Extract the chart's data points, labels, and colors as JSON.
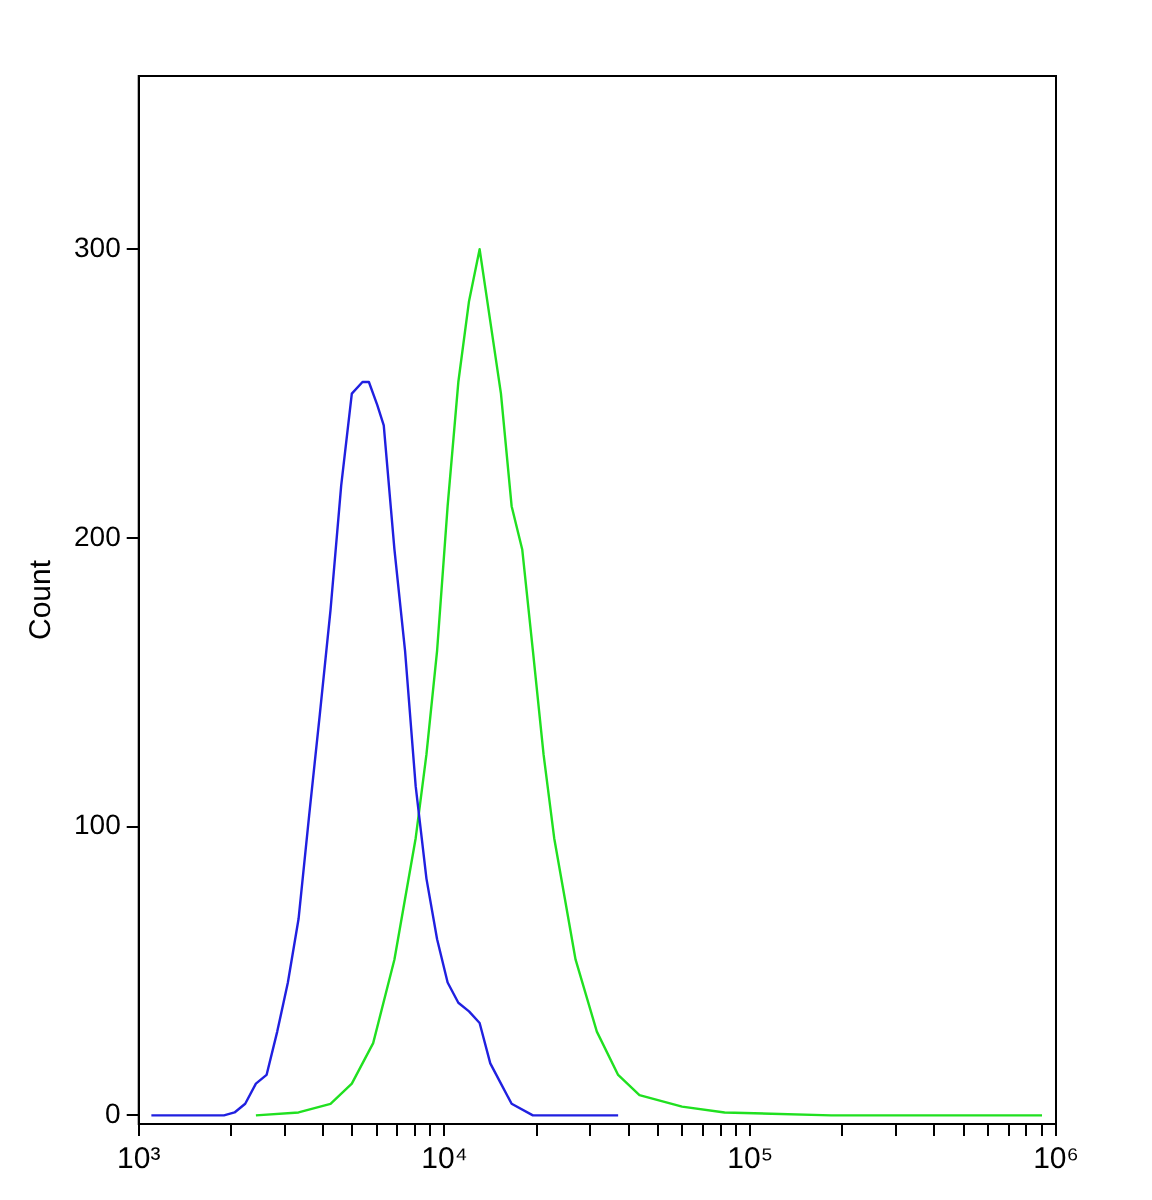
{
  "chart_data": {
    "type": "line",
    "ylabel": "Count",
    "log": "x",
    "grid": false,
    "legend": false,
    "marker": "none",
    "line_style": "solid",
    "xlim": [
      1000,
      1000000
    ],
    "xticks": [
      {
        "value": 1000,
        "label": "10³"
      },
      {
        "value": 2000,
        "label": null
      },
      {
        "value": 3000,
        "label": null
      },
      {
        "value": 4000,
        "label": null
      },
      {
        "value": 5000,
        "label": null
      },
      {
        "value": 6000,
        "label": null
      },
      {
        "value": 7000,
        "label": null
      },
      {
        "value": 8000,
        "label": null
      },
      {
        "value": 9000,
        "label": null
      },
      {
        "value": 10000,
        "label": "10⁴"
      },
      {
        "value": 20000,
        "label": null
      },
      {
        "value": 30000,
        "label": null
      },
      {
        "value": 40000,
        "label": null
      },
      {
        "value": 50000,
        "label": null
      },
      {
        "value": 60000,
        "label": null
      },
      {
        "value": 70000,
        "label": null
      },
      {
        "value": 80000,
        "label": null
      },
      {
        "value": 90000,
        "label": null
      },
      {
        "value": 100000,
        "label": "10⁵"
      },
      {
        "value": 200000,
        "label": null
      },
      {
        "value": 300000,
        "label": null
      },
      {
        "value": 400000,
        "label": null
      },
      {
        "value": 500000,
        "label": null
      },
      {
        "value": 600000,
        "label": null
      },
      {
        "value": 700000,
        "label": null
      },
      {
        "value": 800000,
        "label": null
      },
      {
        "value": 900000,
        "label": null
      },
      {
        "value": 1000000,
        "label": "10⁶"
      }
    ],
    "ylim": [
      -3,
      360
    ],
    "yticks": [
      0,
      100,
      200,
      300
    ],
    "series": [
      {
        "color": "#2020e0",
        "x": [
          1100,
          1900,
          2058,
          2230,
          2417,
          2619,
          2838,
          3075,
          3332,
          3610,
          3912,
          4239,
          4593,
          4977,
          5393,
          5660,
          6030,
          6330,
          6860,
          7430,
          8050,
          8730,
          9460,
          10240,
          11100,
          12030,
          13030,
          14120,
          15300,
          16580,
          19460,
          36980
        ],
        "values": [
          0,
          0,
          1,
          4,
          11,
          14,
          29,
          46,
          68,
          104,
          139,
          175,
          218,
          250,
          254,
          254,
          246,
          239,
          196,
          161,
          114,
          82,
          61,
          46,
          39,
          36,
          32,
          18,
          11,
          4,
          0,
          0
        ]
      },
      {
        "color": "#20e020",
        "x": [
          2417,
          3332,
          4239,
          4977,
          5845,
          6860,
          8050,
          8730,
          9460,
          10240,
          11100,
          12030,
          13030,
          14120,
          15300,
          16580,
          17960,
          19460,
          21090,
          22850,
          24760,
          26830,
          31500,
          36980,
          43420,
          59840,
          82450,
          184000,
          900000
        ],
        "values": [
          0,
          1,
          4,
          11,
          25,
          54,
          96,
          125,
          161,
          211,
          254,
          282,
          300,
          275,
          250,
          211,
          196,
          161,
          125,
          96,
          75,
          54,
          29,
          14,
          7,
          3,
          1,
          0,
          0
        ]
      }
    ]
  }
}
